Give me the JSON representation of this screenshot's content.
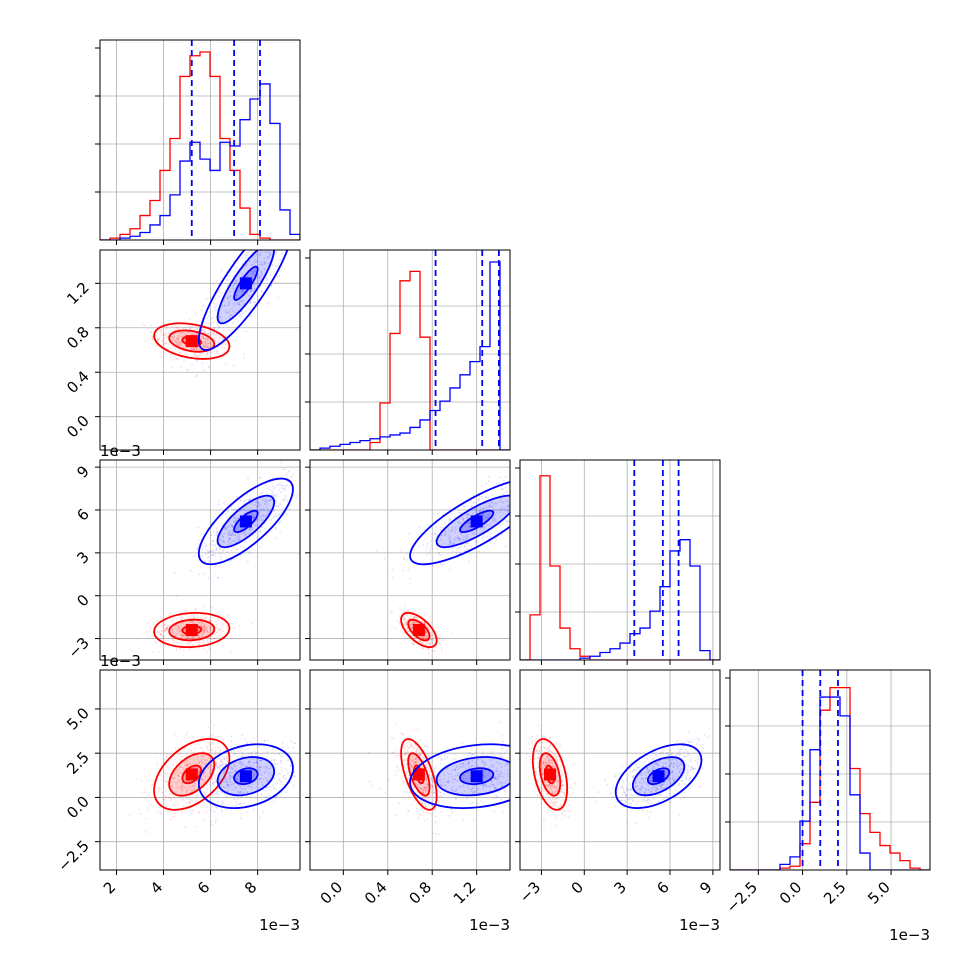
{
  "chart_data": {
    "type": "corner",
    "n_params": 4,
    "colors": {
      "red": "#ff0000",
      "blue": "#0000ff"
    },
    "series": [
      {
        "color": "#ff0000",
        "means": [
          0.0052,
          0.00068,
          -0.0024,
          0.0013
        ],
        "sigmas": [
          0.0008,
          8e-05,
          0.0006,
          0.001
        ]
      },
      {
        "color": "#0000ff",
        "means": [
          0.0075,
          0.0012,
          0.0052,
          0.0012
        ],
        "sigmas": [
          0.001,
          0.0003,
          0.0015,
          0.0009
        ]
      }
    ],
    "quantile_lines": [
      [
        0.0052,
        0.007,
        0.0081
      ],
      [
        0.00083,
        0.00125,
        0.0014
      ],
      [
        0.0035,
        0.0055,
        0.0066
      ],
      [
        0.0,
        0.001,
        0.002
      ]
    ],
    "axes": [
      {
        "index": 0,
        "range": [
          0.0013,
          0.0098
        ],
        "ticks": [
          0.002,
          0.004,
          0.006,
          0.008
        ],
        "tick_labels": [
          "2",
          "4",
          "6",
          "8"
        ],
        "exponent_label": "1e−3"
      },
      {
        "index": 1,
        "range": [
          -0.0003,
          0.0015
        ],
        "ticks": [
          0.0,
          0.0004,
          0.0008,
          0.0012
        ],
        "tick_labels": [
          "0.0",
          "0.4",
          "0.8",
          "1.2"
        ],
        "exponent_label": "1e−3"
      },
      {
        "index": 2,
        "range": [
          -0.0045,
          0.0095
        ],
        "ticks": [
          -0.003,
          0.0,
          0.003,
          0.006,
          0.009
        ],
        "tick_labels": [
          "−3",
          "0",
          "3",
          "6",
          "9"
        ],
        "exponent_label": "1e−3"
      },
      {
        "index": 3,
        "range": [
          -0.0041,
          0.0072
        ],
        "ticks": [
          -0.0025,
          0.0,
          0.0025,
          0.005
        ],
        "tick_labels": [
          "−2.5",
          "0.0",
          "2.5",
          "5.0"
        ],
        "exponent_label": "1e−3"
      }
    ],
    "histograms": [
      {
        "param": 0,
        "red": [
          0.0,
          0.01,
          0.03,
          0.06,
          0.13,
          0.21,
          0.37,
          0.54,
          0.87,
          0.98,
          1.0,
          0.87,
          0.54,
          0.37,
          0.17,
          0.03,
          0.01,
          0.0,
          0.0,
          0.0
        ],
        "blue": [
          0.0,
          0.0,
          0.01,
          0.02,
          0.04,
          0.08,
          0.13,
          0.24,
          0.42,
          0.52,
          0.43,
          0.37,
          0.52,
          0.5,
          0.64,
          0.75,
          0.83,
          0.62,
          0.16,
          0.03
        ]
      },
      {
        "param": 1,
        "red": [
          0.0,
          0.0,
          0.0,
          0.0,
          0.0,
          0.0,
          0.04,
          0.25,
          0.62,
          0.9,
          0.95,
          0.6,
          0.0,
          0.0,
          0.0,
          0.0,
          0.0,
          0.0,
          0.0,
          0.0
        ],
        "blue": [
          0.0,
          0.01,
          0.02,
          0.03,
          0.04,
          0.05,
          0.06,
          0.07,
          0.08,
          0.09,
          0.12,
          0.16,
          0.21,
          0.26,
          0.33,
          0.4,
          0.47,
          0.55,
          1.0,
          0.0
        ]
      },
      {
        "param": 2,
        "red": [
          0.0,
          0.24,
          0.98,
          0.5,
          0.17,
          0.06,
          0.02,
          0.0,
          0.0,
          0.0,
          0.0,
          0.0,
          0.0,
          0.0,
          0.0,
          0.0,
          0.0,
          0.0,
          0.0,
          0.0
        ],
        "blue": [
          0.0,
          0.0,
          0.0,
          0.0,
          0.0,
          0.0,
          0.01,
          0.02,
          0.04,
          0.06,
          0.09,
          0.14,
          0.17,
          0.26,
          0.39,
          0.58,
          0.64,
          0.5,
          0.05,
          0.0
        ]
      },
      {
        "param": 3,
        "red": [
          0.0,
          0.0,
          0.0,
          0.0,
          0.0,
          0.01,
          0.02,
          0.14,
          0.36,
          0.85,
          0.97,
          0.97,
          0.54,
          0.3,
          0.2,
          0.13,
          0.09,
          0.05,
          0.01,
          0.0
        ],
        "blue": [
          0.0,
          0.0,
          0.0,
          0.0,
          0.0,
          0.03,
          0.07,
          0.26,
          0.64,
          0.92,
          0.92,
          0.82,
          0.4,
          0.09,
          0.0,
          0.0,
          0.0,
          0.0,
          0.0,
          0.0
        ]
      }
    ]
  }
}
